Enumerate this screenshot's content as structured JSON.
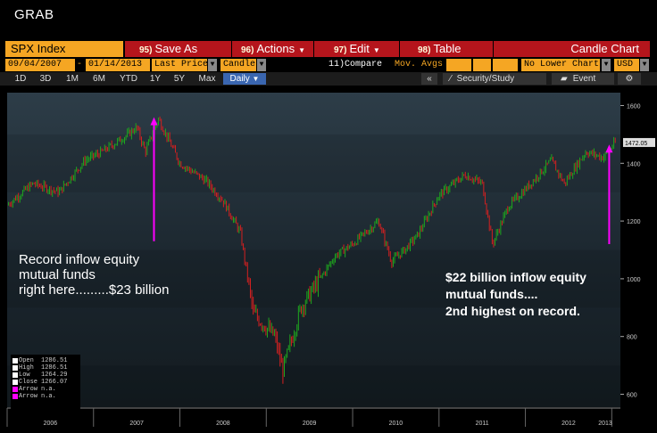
{
  "window": {
    "title": "GRAB"
  },
  "toolbar": {
    "security": "SPX Index",
    "save_as": {
      "num": "95)",
      "label": "Save As"
    },
    "actions": {
      "num": "96)",
      "label": "Actions"
    },
    "edit": {
      "num": "97)",
      "label": "Edit"
    },
    "table": {
      "num": "98)",
      "label": "Table"
    },
    "chart_type": "Candle Chart"
  },
  "fields": {
    "start_date": "09/04/2007",
    "dash": "-",
    "end_date": "01/14/2013",
    "price_type": "Last Price",
    "style": "Candle",
    "compare": "11)Compare",
    "mov_avgs": "Mov. Avgs",
    "lower_chart": "No Lower Chart",
    "currency": "USD"
  },
  "periods": [
    "1D",
    "3D",
    "1M",
    "6M",
    "YTD",
    "1Y",
    "5Y",
    "Max"
  ],
  "period_selected": "Daily",
  "right_tools": {
    "collapse": "«",
    "security_study": "Security/Study",
    "event": "Event",
    "settings": "⚙"
  },
  "annotations": {
    "left": [
      "Record inflow equity",
      "mutual funds",
      "right here.........$23 billion"
    ],
    "right": [
      "$22 billion inflow equity",
      "mutual funds....",
      "2nd highest on record."
    ]
  },
  "legend": [
    {
      "label": "Open",
      "value": "1286.51",
      "color": "#ffffff"
    },
    {
      "label": "High",
      "value": "1286.51",
      "color": "#ffffff"
    },
    {
      "label": "Low",
      "value": "1264.29",
      "color": "#ffffff"
    },
    {
      "label": "Close",
      "value": "1266.07",
      "color": "#ffffff"
    },
    {
      "label": "Arrow",
      "value": "n.a.",
      "color": "#ff00ff"
    },
    {
      "label": "Arrow",
      "value": "n.a.",
      "color": "#ff00ff"
    }
  ],
  "chart_data": {
    "type": "line",
    "series_style": "candlestick",
    "last_price": "1472.05",
    "y_ticks": [
      600,
      800,
      1000,
      1200,
      1400,
      1600
    ],
    "ylim": [
      580,
      1620
    ],
    "x_ticks": [
      "2006",
      "2007",
      "2008",
      "2009",
      "2010",
      "2011",
      "2012",
      "2013"
    ],
    "x_range": [
      2006.0,
      2013.1
    ],
    "series": [
      {
        "x": [
          2006.0,
          2006.3,
          2006.6,
          2006.9,
          2007.1,
          2007.4,
          2007.5,
          2007.6,
          2007.75,
          2008.0,
          2008.3,
          2008.5,
          2008.7,
          2008.85,
          2009.1,
          2009.19,
          2009.4,
          2009.6,
          2009.8,
          2010.0,
          2010.3,
          2010.45,
          2010.6,
          2010.75,
          2011.0,
          2011.3,
          2011.5,
          2011.62,
          2011.8,
          2012.0,
          2012.3,
          2012.45,
          2012.7,
          2012.9,
          2013.04
        ],
        "values": [
          1255,
          1330,
          1300,
          1410,
          1440,
          1500,
          1525,
          1440,
          1555,
          1400,
          1340,
          1270,
          1160,
          880,
          800,
          680,
          900,
          990,
          1080,
          1120,
          1200,
          1060,
          1100,
          1150,
          1290,
          1360,
          1330,
          1120,
          1250,
          1310,
          1410,
          1330,
          1440,
          1420,
          1472
        ]
      }
    ],
    "arrows": [
      {
        "x": 2007.7,
        "y_from": 1130,
        "y_to": 1560
      },
      {
        "x": 2012.97,
        "y_from": 1120,
        "y_to": 1465
      }
    ],
    "grid": true
  },
  "colors": {
    "up": "#1ea61e",
    "down": "#d42020",
    "arrow": "#ff00ff",
    "accent": "#f5a623",
    "button": "#b5151c"
  }
}
